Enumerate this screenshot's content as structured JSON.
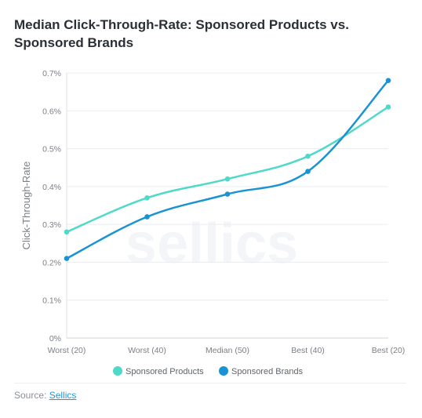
{
  "title": "Median Click-Through-Rate: Sponsored Products vs. Sponsored Brands",
  "source": {
    "prefix": "Source: ",
    "link_text": "Sellics"
  },
  "watermark": "sellics",
  "chart_data": {
    "type": "line",
    "categories": [
      "Worst (20)",
      "Worst (40)",
      "Median (50)",
      "Best (40)",
      "Best (20)"
    ],
    "ylabel": "Click-Through-Rate",
    "xlabel": "",
    "ylim": [
      0,
      0.7
    ],
    "yticks": [
      0,
      0.1,
      0.2,
      0.3,
      0.4,
      0.5,
      0.6,
      0.7
    ],
    "ytick_labels": [
      "0%",
      "0.1%",
      "0.2%",
      "0.3%",
      "0.4%",
      "0.5%",
      "0.6%",
      "0.7%"
    ],
    "grid": true,
    "legend_placement": "bottom-center",
    "series": [
      {
        "name": "Sponsored Products",
        "color": "#4fd9c8",
        "values": [
          0.28,
          0.37,
          0.42,
          0.48,
          0.61
        ]
      },
      {
        "name": "Sponsored Brands",
        "color": "#1a93d4",
        "values": [
          0.21,
          0.32,
          0.38,
          0.44,
          0.68
        ]
      }
    ]
  }
}
